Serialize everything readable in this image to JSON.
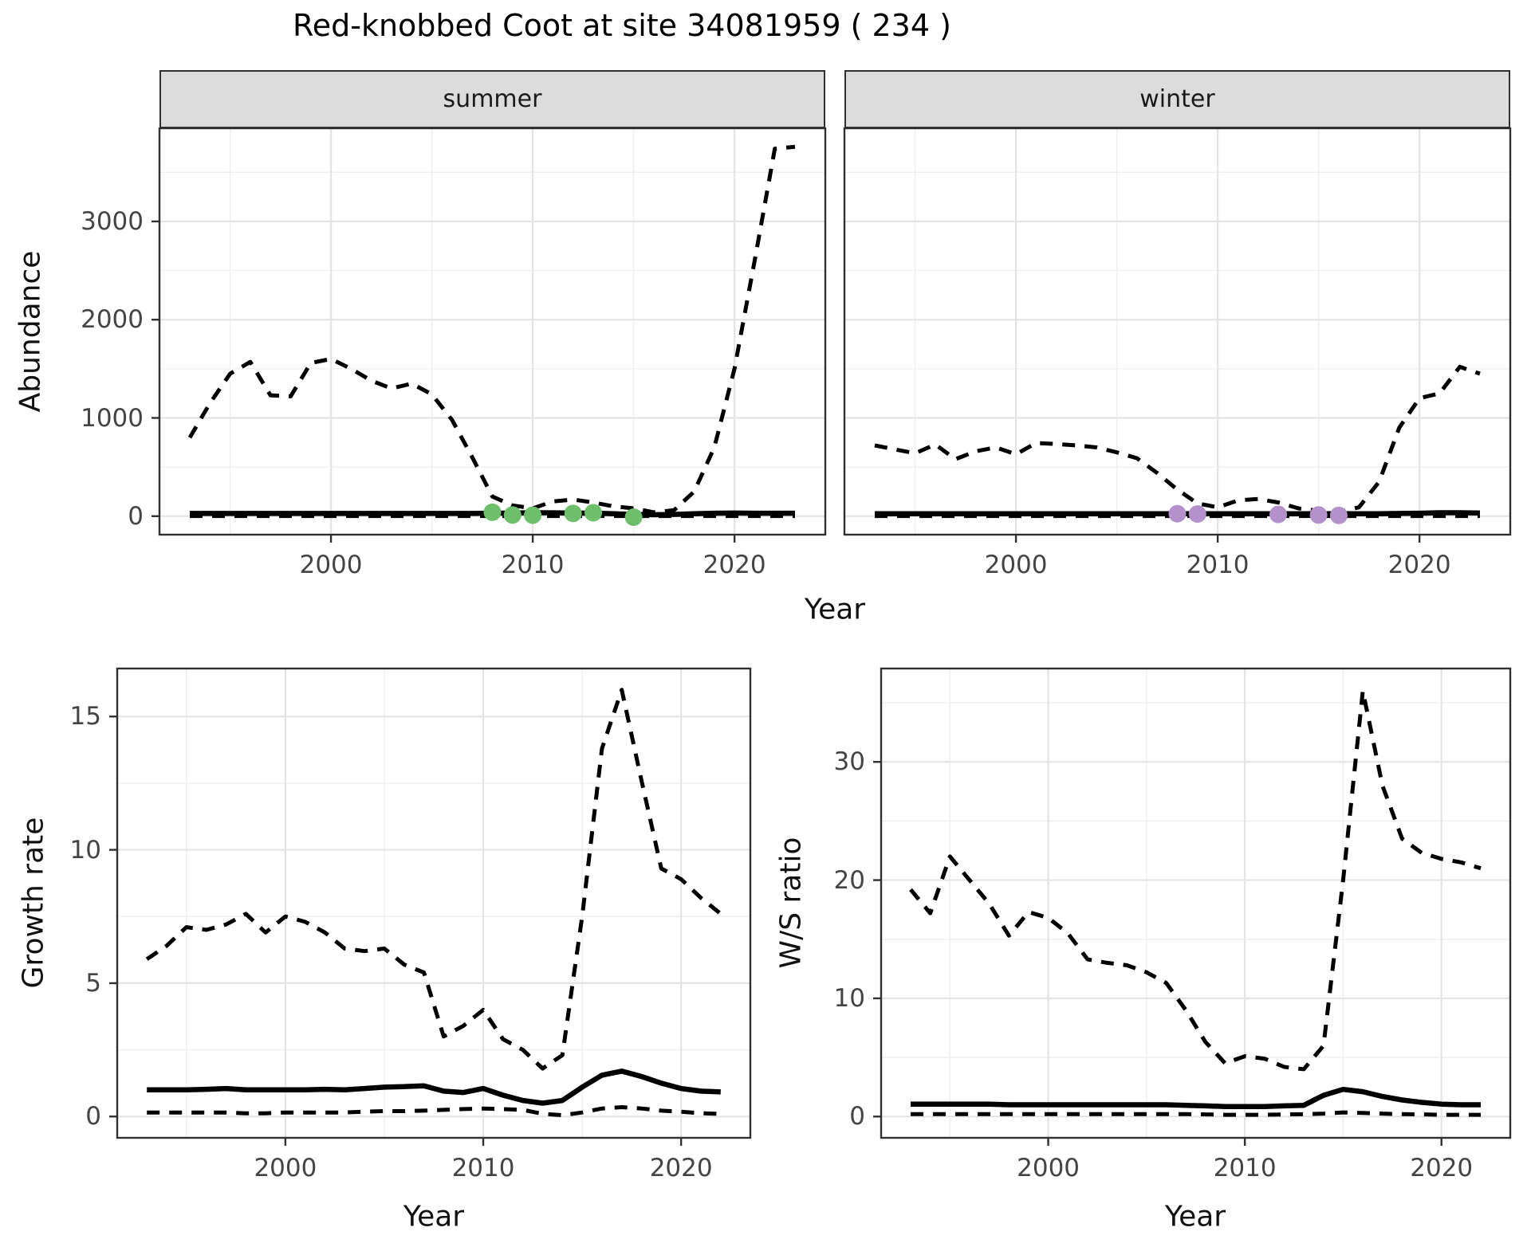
{
  "title": "Red-knobbed Coot at site 34081959 ( 234 )",
  "colors": {
    "line": "#000000",
    "summer_points": "#6dbf6b",
    "winter_points": "#b591cb",
    "strip_bg": "#dcdcdc",
    "panel_border": "#303030",
    "grid_major": "#e4e4e4",
    "grid_minor": "#efefef",
    "axis_text": "#444444"
  },
  "top_row": {
    "ylabel": "Abundance",
    "xlabel": "Year",
    "facets": [
      "summer",
      "winter"
    ]
  },
  "bottom_row": {
    "left_ylabel": "Growth rate",
    "left_xlabel": "Year",
    "right_ylabel": "W/S ratio",
    "right_xlabel": "Year"
  },
  "chart_data": [
    {
      "id": "abundance-summer",
      "type": "line",
      "facet": "summer",
      "xlabel": "Year",
      "ylabel": "Abundance",
      "xlim": [
        1991.5,
        2024.5
      ],
      "ylim": [
        -188,
        3948
      ],
      "xticks": [
        2000,
        2010,
        2020
      ],
      "yticks": [
        0,
        1000,
        2000,
        3000
      ],
      "minor_x": [
        1995,
        2005,
        2015
      ],
      "minor_y": [
        500,
        1500,
        2500,
        3500
      ],
      "show_ytick_labels": true,
      "grid": true,
      "legend_position": "none",
      "x": [
        1993,
        1994,
        1995,
        1996,
        1997,
        1998,
        1999,
        2000,
        2001,
        2002,
        2003,
        2004,
        2005,
        2006,
        2007,
        2008,
        2009,
        2010,
        2011,
        2012,
        2013,
        2014,
        2015,
        2016,
        2017,
        2018,
        2019,
        2020,
        2021,
        2022,
        2023
      ],
      "series": [
        {
          "name": "upper_ci",
          "style": "dashed",
          "values": [
            800,
            1150,
            1450,
            1570,
            1230,
            1220,
            1560,
            1600,
            1500,
            1380,
            1300,
            1350,
            1240,
            980,
            600,
            200,
            110,
            80,
            150,
            170,
            140,
            100,
            80,
            40,
            60,
            250,
            700,
            1500,
            2600,
            3740,
            3760
          ]
        },
        {
          "name": "lower_ci",
          "style": "dashed",
          "values": [
            2,
            2,
            2,
            2,
            2,
            2,
            2,
            2,
            2,
            2,
            2,
            2,
            2,
            2,
            2,
            2,
            2,
            2,
            2,
            2,
            2,
            2,
            2,
            2,
            2,
            2,
            2,
            2,
            2,
            2,
            2
          ]
        },
        {
          "name": "median",
          "style": "solid",
          "values": [
            28,
            28,
            28,
            28,
            28,
            28,
            28,
            28,
            28,
            28,
            28,
            28,
            28,
            28,
            28,
            30,
            32,
            35,
            34,
            32,
            30,
            25,
            18,
            15,
            18,
            25,
            30,
            32,
            30,
            30,
            30
          ]
        }
      ],
      "points": {
        "name": "count-years",
        "color_key": "summer_points",
        "color": "#6dbf6b",
        "x": [
          2008,
          2009,
          2010,
          2012,
          2013,
          2015
        ],
        "y": [
          40,
          12,
          10,
          28,
          35,
          -10
        ]
      }
    },
    {
      "id": "abundance-winter",
      "type": "line",
      "facet": "winter",
      "xlabel": "Year",
      "ylabel": "Abundance",
      "xlim": [
        1991.5,
        2024.5
      ],
      "ylim": [
        -188,
        3948
      ],
      "xticks": [
        2000,
        2010,
        2020
      ],
      "yticks": [
        0,
        1000,
        2000,
        3000
      ],
      "minor_x": [
        1995,
        2005,
        2015
      ],
      "minor_y": [
        500,
        1500,
        2500,
        3500
      ],
      "show_ytick_labels": false,
      "grid": true,
      "legend_position": "none",
      "x": [
        1993,
        1994,
        1995,
        1996,
        1997,
        1998,
        1999,
        2000,
        2001,
        2002,
        2003,
        2004,
        2005,
        2006,
        2007,
        2008,
        2009,
        2010,
        2011,
        2012,
        2013,
        2014,
        2015,
        2016,
        2017,
        2018,
        2019,
        2020,
        2021,
        2022,
        2023
      ],
      "series": [
        {
          "name": "upper_ci",
          "style": "dashed",
          "values": [
            720,
            680,
            640,
            730,
            580,
            660,
            700,
            630,
            745,
            735,
            720,
            700,
            650,
            590,
            440,
            270,
            130,
            90,
            160,
            175,
            140,
            80,
            55,
            40,
            90,
            350,
            900,
            1200,
            1250,
            1520,
            1450
          ]
        },
        {
          "name": "lower_ci",
          "style": "dashed",
          "values": [
            2,
            2,
            2,
            2,
            2,
            2,
            2,
            2,
            2,
            2,
            2,
            2,
            2,
            2,
            2,
            2,
            2,
            2,
            2,
            2,
            2,
            2,
            2,
            2,
            2,
            2,
            2,
            2,
            2,
            2,
            2
          ]
        },
        {
          "name": "median",
          "style": "solid",
          "values": [
            25,
            25,
            25,
            25,
            25,
            25,
            25,
            25,
            25,
            25,
            25,
            25,
            25,
            25,
            25,
            25,
            25,
            25,
            25,
            25,
            25,
            25,
            25,
            25,
            25,
            25,
            28,
            30,
            35,
            35,
            32
          ]
        }
      ],
      "points": {
        "name": "count-years",
        "color_key": "winter_points",
        "color": "#b591cb",
        "x": [
          2008,
          2009,
          2013,
          2015,
          2016
        ],
        "y": [
          25,
          22,
          18,
          12,
          8
        ]
      }
    },
    {
      "id": "growth-rate",
      "type": "line",
      "xlabel": "Year",
      "ylabel": "Growth rate",
      "xlim": [
        1991.5,
        2023.5
      ],
      "ylim": [
        -0.8,
        16.8
      ],
      "xticks": [
        2000,
        2010,
        2020
      ],
      "yticks": [
        0,
        5,
        10,
        15
      ],
      "minor_x": [
        1995,
        2005,
        2015
      ],
      "minor_y": [
        2.5,
        7.5,
        12.5
      ],
      "show_ytick_labels": true,
      "grid": true,
      "legend_position": "none",
      "x": [
        1993,
        1994,
        1995,
        1996,
        1997,
        1998,
        1999,
        2000,
        2001,
        2002,
        2003,
        2004,
        2005,
        2006,
        2007,
        2008,
        2009,
        2010,
        2011,
        2012,
        2013,
        2014,
        2015,
        2016,
        2017,
        2018,
        2019,
        2020,
        2021,
        2022
      ],
      "series": [
        {
          "name": "upper_ci",
          "style": "dashed",
          "values": [
            5.9,
            6.4,
            7.1,
            7.0,
            7.2,
            7.6,
            6.9,
            7.5,
            7.3,
            6.9,
            6.3,
            6.2,
            6.3,
            5.7,
            5.4,
            3.0,
            3.4,
            4.0,
            2.9,
            2.5,
            1.8,
            2.3,
            7.5,
            13.8,
            16.0,
            12.6,
            9.3,
            8.9,
            8.2,
            7.6
          ]
        },
        {
          "name": "lower_ci",
          "style": "dashed",
          "values": [
            0.15,
            0.15,
            0.15,
            0.15,
            0.15,
            0.12,
            0.12,
            0.15,
            0.15,
            0.15,
            0.15,
            0.18,
            0.2,
            0.2,
            0.22,
            0.25,
            0.28,
            0.3,
            0.28,
            0.25,
            0.1,
            0.05,
            0.15,
            0.3,
            0.35,
            0.3,
            0.22,
            0.18,
            0.12,
            0.1
          ]
        },
        {
          "name": "median",
          "style": "solid",
          "values": [
            1.0,
            1.0,
            1.0,
            1.02,
            1.05,
            1.0,
            1.0,
            1.0,
            1.0,
            1.02,
            1.0,
            1.05,
            1.1,
            1.12,
            1.15,
            0.95,
            0.9,
            1.05,
            0.8,
            0.6,
            0.5,
            0.6,
            1.1,
            1.55,
            1.7,
            1.5,
            1.25,
            1.05,
            0.95,
            0.92
          ]
        }
      ]
    },
    {
      "id": "ws-ratio",
      "type": "line",
      "xlabel": "Year",
      "ylabel": "W/S ratio",
      "xlim": [
        1991.5,
        2023.5
      ],
      "ylim": [
        -1.8,
        37.9
      ],
      "xticks": [
        2000,
        2010,
        2020
      ],
      "yticks": [
        0,
        10,
        20,
        30
      ],
      "minor_x": [
        1995,
        2005,
        2015
      ],
      "minor_y": [
        5,
        15,
        25,
        35
      ],
      "show_ytick_labels": true,
      "grid": true,
      "legend_position": "none",
      "x": [
        1993,
        1994,
        1995,
        1996,
        1997,
        1998,
        1999,
        2000,
        2001,
        2002,
        2003,
        2004,
        2005,
        2006,
        2007,
        2008,
        2009,
        2010,
        2011,
        2012,
        2013,
        2014,
        2015,
        2016,
        2017,
        2018,
        2019,
        2020,
        2021,
        2022
      ],
      "series": [
        {
          "name": "upper_ci",
          "style": "dashed",
          "values": [
            19.2,
            17.2,
            22.0,
            20.0,
            18.0,
            15.3,
            17.3,
            16.8,
            15.5,
            13.3,
            13.0,
            12.8,
            12.2,
            11.3,
            9.0,
            6.3,
            4.5,
            5.1,
            4.9,
            4.2,
            4.0,
            6.0,
            20.0,
            36.0,
            28.0,
            23.5,
            22.3,
            21.8,
            21.5,
            21.0
          ]
        },
        {
          "name": "lower_ci",
          "style": "dashed",
          "values": [
            0.2,
            0.2,
            0.2,
            0.2,
            0.2,
            0.2,
            0.2,
            0.2,
            0.2,
            0.2,
            0.2,
            0.2,
            0.2,
            0.2,
            0.2,
            0.18,
            0.15,
            0.15,
            0.15,
            0.18,
            0.2,
            0.25,
            0.35,
            0.3,
            0.25,
            0.2,
            0.18,
            0.15,
            0.15,
            0.15
          ]
        },
        {
          "name": "median",
          "style": "solid",
          "values": [
            1.05,
            1.05,
            1.05,
            1.05,
            1.05,
            1.0,
            1.0,
            1.0,
            1.0,
            1.0,
            1.0,
            1.0,
            1.0,
            1.0,
            0.95,
            0.9,
            0.85,
            0.85,
            0.85,
            0.9,
            0.95,
            1.8,
            2.3,
            2.1,
            1.7,
            1.4,
            1.2,
            1.05,
            1.0,
            1.0
          ]
        }
      ]
    }
  ]
}
